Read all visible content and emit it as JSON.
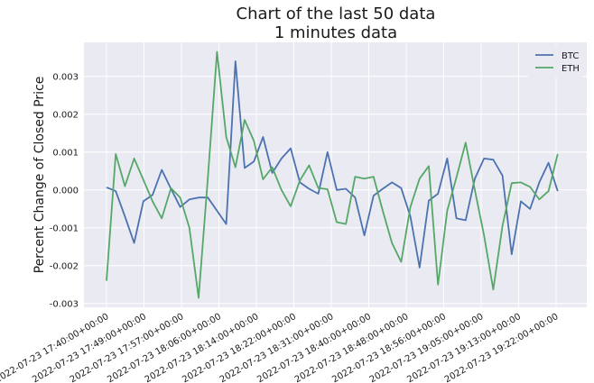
{
  "chart_data": {
    "type": "line",
    "title_line1": "Chart of the last 50 data",
    "title_line2": "1 minutes data",
    "xlabel": "",
    "ylabel": "Percent Change of Closed Price",
    "x_tick_labels": [
      "2022-07-23 17:40:00+00:00",
      "2022-07-23 17:49:00+00:00",
      "2022-07-23 17:57:00+00:00",
      "2022-07-23 18:06:00+00:00",
      "2022-07-23 18:14:00+00:00",
      "2022-07-23 18:22:00+00:00",
      "2022-07-23 18:31:00+00:00",
      "2022-07-23 18:40:00+00:00",
      "2022-07-23 18:48:00+00:00",
      "2022-07-23 18:56:00+00:00",
      "2022-07-23 19:05:00+00:00",
      "2022-07-23 19:13:00+00:00",
      "2022-07-23 19:22:00+00:00"
    ],
    "y_tick_labels": [
      "-0.003",
      "-0.002",
      "-0.001",
      "0.000",
      "0.001",
      "0.002",
      "0.003"
    ],
    "y_ticks": [
      -0.003,
      -0.002,
      -0.001,
      0.0,
      0.001,
      0.002,
      0.003
    ],
    "ylim": [
      -0.0031,
      0.0039
    ],
    "grid": true,
    "legend_position": "top-right",
    "series": [
      {
        "name": "BTC",
        "color": "#4c72b0",
        "values": [
          7e-05,
          -3e-05,
          -0.0007,
          -0.0014,
          -0.0003,
          -0.00013,
          0.00053,
          3e-05,
          -0.00045,
          -0.00025,
          -0.0002,
          -0.0002,
          -0.00055,
          -0.0009,
          0.0034,
          0.00058,
          0.00075,
          0.0014,
          0.00045,
          0.00083,
          0.0011,
          0.0002,
          3e-05,
          -0.0001,
          0.001,
          0.0,
          3e-05,
          -0.0002,
          -0.0012,
          -0.00015,
          3e-05,
          0.0002,
          5e-05,
          -0.0007,
          -0.00205,
          -0.00028,
          -0.0001,
          0.00083,
          -0.00075,
          -0.0008,
          0.0003,
          0.00083,
          0.0008,
          0.00038,
          -0.0017,
          -0.0003,
          -0.0005,
          0.0002,
          0.00072,
          -3e-05
        ]
      },
      {
        "name": "ETH",
        "color": "#55a868",
        "values": [
          -0.0024,
          0.00095,
          0.0001,
          0.00083,
          0.00027,
          -0.0003,
          -0.00075,
          5e-05,
          -0.0002,
          -0.001,
          -0.00285,
          0.0003,
          0.00365,
          0.0014,
          0.0006,
          0.00185,
          0.0013,
          0.00028,
          0.0006,
          0.0,
          -0.00043,
          0.00025,
          0.00065,
          5e-05,
          2e-05,
          -0.00085,
          -0.0009,
          0.00035,
          0.0003,
          0.00035,
          -0.00055,
          -0.0014,
          -0.0019,
          -0.00045,
          0.0003,
          0.00063,
          -0.0025,
          -0.00055,
          0.00033,
          0.00125,
          0.0,
          -0.0012,
          -0.00263,
          -0.00095,
          0.00018,
          0.0002,
          8e-05,
          -0.00025,
          -3e-05,
          0.00095
        ]
      }
    ]
  }
}
